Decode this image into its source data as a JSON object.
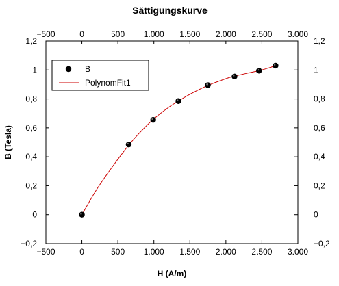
{
  "chart_data": {
    "type": "scatter",
    "title": "Sättigungskurve",
    "xlabel": "H (A/m)",
    "ylabel": "B (Tesla)",
    "xlim": [
      -500,
      3000
    ],
    "ylim": [
      -0.2,
      1.2
    ],
    "xticks": [
      -500,
      0,
      500,
      1000,
      1500,
      2000,
      2500,
      3000
    ],
    "xtick_labels": [
      "−500",
      "0",
      "500",
      "1.000",
      "1.500",
      "2.000",
      "2.500",
      "3.000"
    ],
    "yticks": [
      -0.2,
      0,
      0.2,
      0.4,
      0.6,
      0.8,
      1.0,
      1.2
    ],
    "ytick_labels": [
      "−0,2",
      "0",
      "0,2",
      "0,4",
      "0,6",
      "0,8",
      "1",
      "1,2"
    ],
    "grid": false,
    "legend_position": "top-left",
    "series": [
      {
        "name": "B",
        "kind": "scatter",
        "color": "#000000",
        "x": [
          0,
          650,
          990,
          1340,
          1750,
          2120,
          2460,
          2690
        ],
        "y": [
          0,
          0.485,
          0.655,
          0.785,
          0.895,
          0.955,
          0.995,
          1.03
        ]
      },
      {
        "name": "PolynomFit1",
        "kind": "line",
        "color": "#cc0000",
        "x": [
          0,
          200,
          400,
          650,
          800,
          990,
          1200,
          1340,
          1500,
          1750,
          2000,
          2120,
          2300,
          2460,
          2600,
          2690
        ],
        "y": [
          0,
          0.17,
          0.315,
          0.48,
          0.565,
          0.658,
          0.74,
          0.785,
          0.832,
          0.893,
          0.94,
          0.957,
          0.978,
          0.995,
          1.015,
          1.03
        ]
      }
    ],
    "colors": {
      "frame": "#000000",
      "fit_line": "#cc0000",
      "marker": "#000000"
    }
  }
}
